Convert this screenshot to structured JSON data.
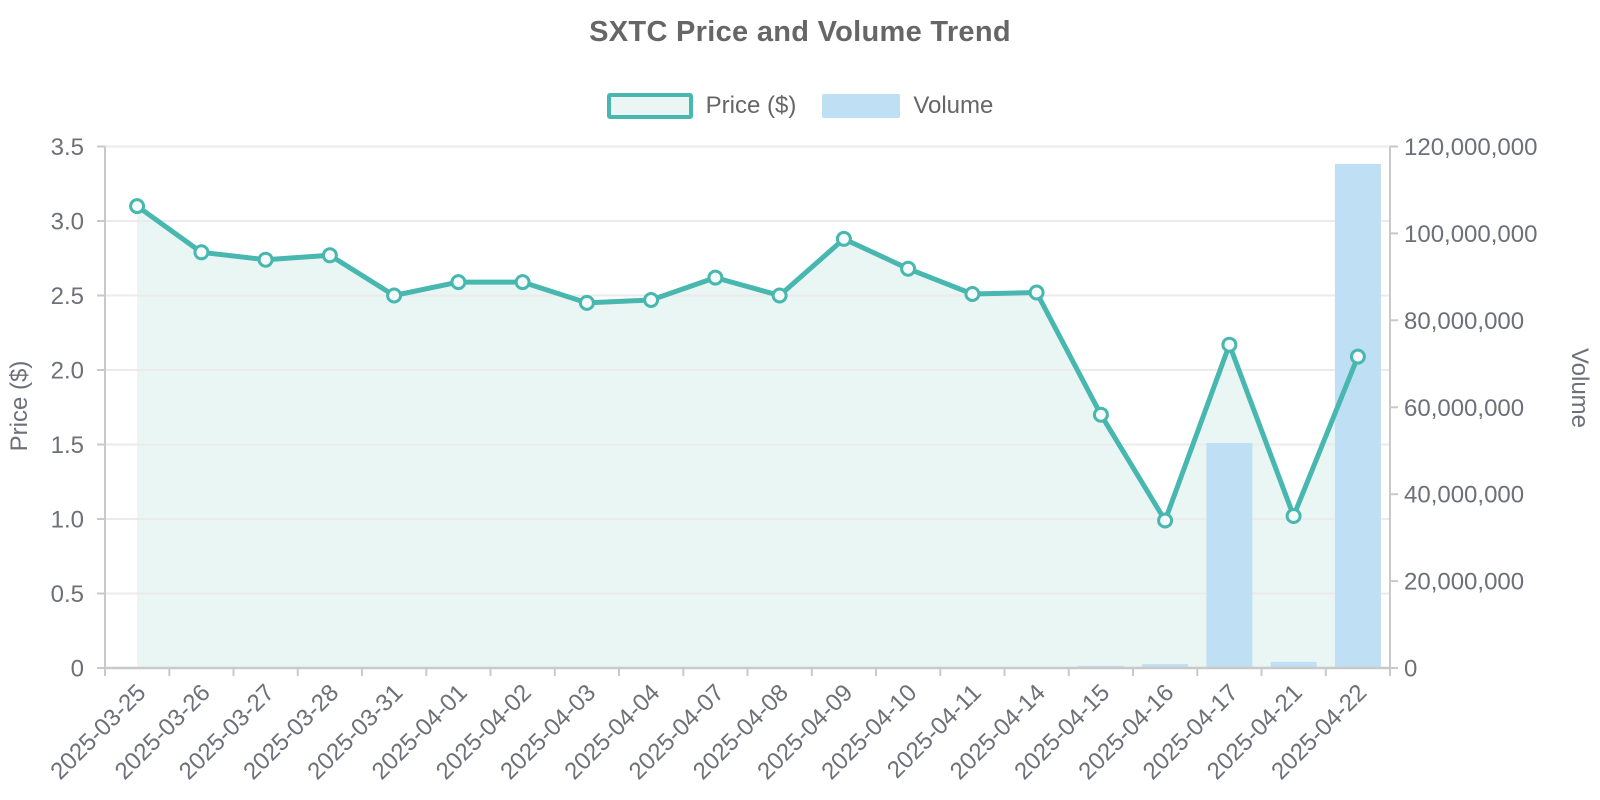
{
  "title": "SXTC Price and Volume Trend",
  "legend": [
    {
      "label": "Price ($)"
    },
    {
      "label": "Volume"
    }
  ],
  "colors": {
    "price_line": "#47b7af",
    "price_area": "#e9f6f4",
    "marker_fill": "#f4fbfa",
    "volume_bar": "#bfdff4",
    "title_text": "#666666",
    "tick_text": "#6e7079",
    "axis_line": "#c9c9c9",
    "grid_line": "#ebebeb"
  },
  "chart_data": {
    "type": "combo",
    "subtypes": [
      "line",
      "bar"
    ],
    "title": "SXTC Price and Volume Trend",
    "legend_position": "top",
    "grid": true,
    "categories": [
      "2025-03-25",
      "2025-03-26",
      "2025-03-27",
      "2025-03-28",
      "2025-03-31",
      "2025-04-01",
      "2025-04-02",
      "2025-04-03",
      "2025-04-04",
      "2025-04-07",
      "2025-04-08",
      "2025-04-09",
      "2025-04-10",
      "2025-04-11",
      "2025-04-14",
      "2025-04-15",
      "2025-04-16",
      "2025-04-17",
      "2025-04-21",
      "2025-04-22"
    ],
    "series": [
      {
        "name": "Price ($)",
        "type": "line",
        "axis": "left",
        "area_fill": true,
        "values": [
          3.1,
          2.79,
          2.74,
          2.77,
          2.5,
          2.59,
          2.59,
          2.45,
          2.47,
          2.62,
          2.5,
          2.88,
          2.68,
          2.51,
          2.52,
          1.7,
          0.99,
          2.17,
          1.02,
          2.09
        ]
      },
      {
        "name": "Volume",
        "type": "bar",
        "axis": "right",
        "values": [
          0,
          0,
          0,
          0,
          0,
          0,
          0,
          0,
          0,
          0,
          0,
          0,
          0,
          0,
          0,
          500000,
          900000,
          51800000,
          1400000,
          116000000
        ]
      }
    ],
    "left_axis": {
      "label": "Price ($)",
      "min": 0,
      "max": 3.5,
      "ticks": [
        "0",
        "0.5",
        "1.0",
        "1.5",
        "2.0",
        "2.5",
        "3.0",
        "3.5"
      ]
    },
    "right_axis": {
      "label": "Volume",
      "min": 0,
      "max": 120000000,
      "ticks": [
        "0",
        "20,000,000",
        "40,000,000",
        "60,000,000",
        "80,000,000",
        "100,000,000",
        "120,000,000"
      ]
    },
    "x_axis": {
      "label_rotation": -45
    }
  }
}
